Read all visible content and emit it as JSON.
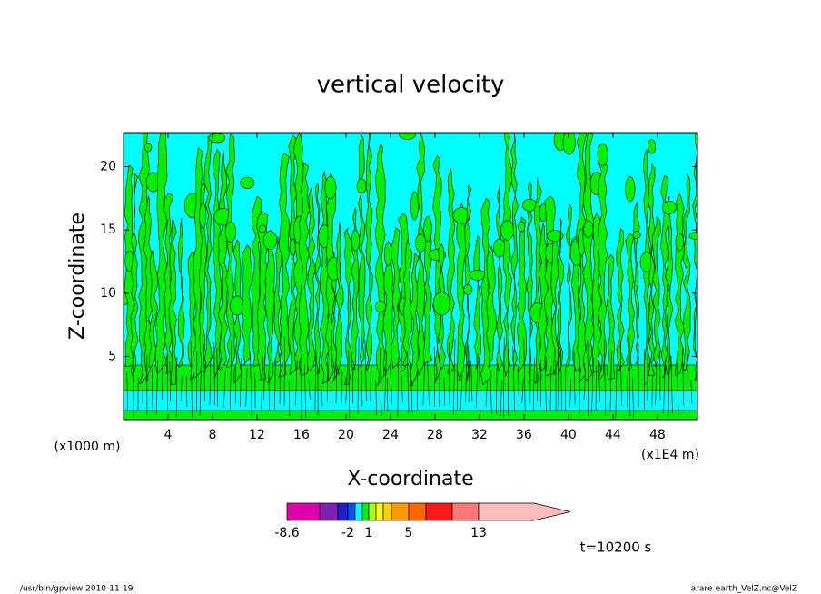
{
  "chart_data": {
    "type": "contour",
    "title": "vertical velocity",
    "x_label": "X-coordinate",
    "y_label": "Z-coordinate",
    "x_unit_left": "(x1000 m)",
    "x_unit_right": "(x1E4 m)",
    "xlim": [
      0,
      51.6
    ],
    "xticks": [
      4,
      8,
      12,
      16,
      20,
      24,
      28,
      32,
      36,
      40,
      44,
      48
    ],
    "ylim": [
      0,
      22.7
    ],
    "yticks": [
      5,
      10,
      15,
      20
    ],
    "annotation": "t=10200 s",
    "colorbar": {
      "levels": [
        -8.6,
        -5,
        -3,
        -2,
        -1,
        0,
        1,
        2,
        3,
        4,
        5,
        7,
        10,
        13
      ],
      "colors": [
        "#dd00aa",
        "#8020b0",
        "#2020c8",
        "#0050ff",
        "#00ffff",
        "#00f000",
        "#b0ff00",
        "#ffff00",
        "#ffd000",
        "#ff9900",
        "#ff6600",
        "#ff1818",
        "#ff7878",
        "#ffbcbc"
      ],
      "ticks": [
        -8.6,
        -2,
        1,
        5,
        13
      ]
    },
    "footer_left": "/usr/bin/gpview   2010-11-19",
    "footer_right": "arare-earth_VelZ.nc@VelZ"
  }
}
